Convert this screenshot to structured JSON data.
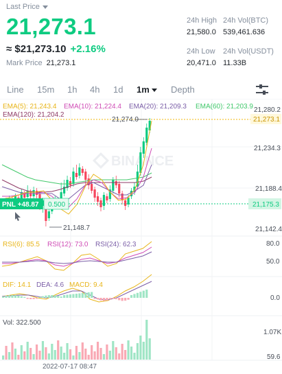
{
  "header": {
    "last_price_label": "Last Price",
    "price": "21,273.1",
    "usd_value": "≈ $21,273.10",
    "change": "+2.16%",
    "mark_label": "Mark Price",
    "mark_value": "21,273.1"
  },
  "stats": {
    "high_label": "24h High",
    "high_value": "21,580.0",
    "volbtc_label": "24h Vol(BTC)",
    "volbtc_value": "539,461.636",
    "low_label": "24h Low",
    "low_value": "20,471.0",
    "volusdt_label": "24h Vol(USDT)",
    "volusdt_value": "11.33B"
  },
  "tabs": [
    "Line",
    "15m",
    "1h",
    "4h",
    "1d",
    "1m",
    "Depth"
  ],
  "active_tab": "1m",
  "ema_legend": [
    {
      "label": "EMA(5): 21,243.4",
      "color": "#e8b51a"
    },
    {
      "label": "EMA(10): 21,224.4",
      "color": "#cf4bb5"
    },
    {
      "label": "EMA(20): 21,209.3",
      "color": "#7b5ea7"
    },
    {
      "label": "EMA(60): 21,203.9",
      "color": "#42c86b"
    },
    {
      "label": "EMA(120): 21,204.2",
      "color": "#8e3a66"
    }
  ],
  "price_axis": [
    "21,280.2",
    "21,234.3",
    "21,188.4",
    "21,142.4"
  ],
  "current_price_tag": "21,273.1",
  "pnl_tag": "PNL +48.87",
  "position_qty": "0.500",
  "position_price_tag": "21,175.3",
  "high_marker": "21,274.0",
  "low_marker": "21,148.7",
  "watermark": "BINANCE",
  "rsi_legend": [
    {
      "label": "RSI(6): 85.5",
      "color": "#e8b51a"
    },
    {
      "label": "RSI(12): 73.0",
      "color": "#cf4bb5"
    },
    {
      "label": "RSI(24): 62.3",
      "color": "#7b5ea7"
    }
  ],
  "rsi_axis": [
    "80.0",
    "50.0"
  ],
  "macd_legend": [
    {
      "label": "DIF: 14.1",
      "color": "#e8b51a"
    },
    {
      "label": "DEA: 4.6",
      "color": "#7b5ea7"
    },
    {
      "label": "MACD: 9.4",
      "color": "#e8b51a"
    }
  ],
  "macd_axis": [
    "0.0"
  ],
  "vol_label": "Vol: 322.500",
  "vol_axis": [
    "1.07K",
    "59.6"
  ],
  "time_label": "2022-07-17 08:47",
  "colors": {
    "up": "#0ecb81",
    "down": "#f6465d",
    "grid": "#eef0f3",
    "text": "#848e9c"
  }
}
